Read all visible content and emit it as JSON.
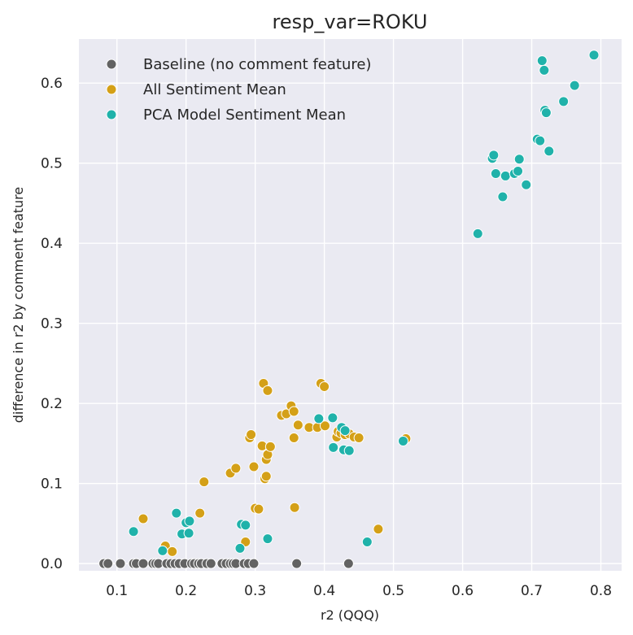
{
  "chart_data": {
    "type": "scatter",
    "title": "resp_var=ROKU",
    "xlabel": "r2 (QQQ)",
    "ylabel": "difference in r2 by comment feature",
    "xlim": [
      0.045,
      0.83
    ],
    "ylim": [
      -0.009,
      0.655
    ],
    "xticks": [
      0.1,
      0.2,
      0.3,
      0.4,
      0.5,
      0.6,
      0.7,
      0.8
    ],
    "yticks": [
      0.0,
      0.1,
      0.2,
      0.3,
      0.4,
      0.5,
      0.6
    ],
    "xtick_labels": [
      "0.1",
      "0.2",
      "0.3",
      "0.4",
      "0.5",
      "0.6",
      "0.7",
      "0.8"
    ],
    "ytick_labels": [
      "0.0",
      "0.1",
      "0.2",
      "0.3",
      "0.4",
      "0.5",
      "0.6"
    ],
    "grid": true,
    "legend_position": "top-left",
    "background": "#eaeaf2",
    "series": [
      {
        "name": "Baseline (no comment feature)",
        "color": "#636363",
        "points": [
          [
            0.081,
            0
          ],
          [
            0.087,
            0
          ],
          [
            0.105,
            0
          ],
          [
            0.124,
            0
          ],
          [
            0.128,
            0
          ],
          [
            0.138,
            0
          ],
          [
            0.152,
            0
          ],
          [
            0.156,
            0
          ],
          [
            0.16,
            0
          ],
          [
            0.172,
            0
          ],
          [
            0.178,
            0
          ],
          [
            0.184,
            0
          ],
          [
            0.19,
            0
          ],
          [
            0.198,
            0
          ],
          [
            0.208,
            0
          ],
          [
            0.212,
            0
          ],
          [
            0.218,
            0
          ],
          [
            0.222,
            0
          ],
          [
            0.23,
            0
          ],
          [
            0.236,
            0
          ],
          [
            0.252,
            0
          ],
          [
            0.258,
            0
          ],
          [
            0.264,
            0
          ],
          [
            0.268,
            0
          ],
          [
            0.272,
            0
          ],
          [
            0.284,
            0
          ],
          [
            0.29,
            0
          ],
          [
            0.298,
            0
          ],
          [
            0.36,
            0
          ],
          [
            0.435,
            0
          ]
        ]
      },
      {
        "name": "All Sentiment Mean",
        "color": "#d4a017",
        "points": [
          [
            0.138,
            0.056
          ],
          [
            0.17,
            0.022
          ],
          [
            0.18,
            0.015
          ],
          [
            0.22,
            0.063
          ],
          [
            0.226,
            0.102
          ],
          [
            0.264,
            0.113
          ],
          [
            0.272,
            0.119
          ],
          [
            0.286,
            0.027
          ],
          [
            0.292,
            0.157
          ],
          [
            0.294,
            0.161
          ],
          [
            0.298,
            0.121
          ],
          [
            0.3,
            0.069
          ],
          [
            0.305,
            0.068
          ],
          [
            0.31,
            0.147
          ],
          [
            0.312,
            0.225
          ],
          [
            0.314,
            0.106
          ],
          [
            0.316,
            0.109
          ],
          [
            0.316,
            0.13
          ],
          [
            0.318,
            0.136
          ],
          [
            0.318,
            0.216
          ],
          [
            0.322,
            0.146
          ],
          [
            0.338,
            0.185
          ],
          [
            0.345,
            0.187
          ],
          [
            0.352,
            0.197
          ],
          [
            0.356,
            0.19
          ],
          [
            0.356,
            0.157
          ],
          [
            0.357,
            0.07
          ],
          [
            0.362,
            0.173
          ],
          [
            0.378,
            0.17
          ],
          [
            0.39,
            0.17
          ],
          [
            0.395,
            0.225
          ],
          [
            0.4,
            0.221
          ],
          [
            0.401,
            0.172
          ],
          [
            0.418,
            0.158
          ],
          [
            0.42,
            0.165
          ],
          [
            0.424,
            0.163
          ],
          [
            0.43,
            0.161
          ],
          [
            0.436,
            0.162
          ],
          [
            0.443,
            0.158
          ],
          [
            0.45,
            0.157
          ],
          [
            0.478,
            0.043
          ],
          [
            0.518,
            0.156
          ]
        ]
      },
      {
        "name": "PCA Model Sentiment Mean",
        "color": "#20b2aa",
        "points": [
          [
            0.124,
            0.04
          ],
          [
            0.166,
            0.016
          ],
          [
            0.186,
            0.063
          ],
          [
            0.194,
            0.037
          ],
          [
            0.2,
            0.051
          ],
          [
            0.204,
            0.038
          ],
          [
            0.205,
            0.053
          ],
          [
            0.278,
            0.019
          ],
          [
            0.28,
            0.049
          ],
          [
            0.286,
            0.048
          ],
          [
            0.318,
            0.031
          ],
          [
            0.392,
            0.181
          ],
          [
            0.412,
            0.182
          ],
          [
            0.413,
            0.145
          ],
          [
            0.425,
            0.17
          ],
          [
            0.428,
            0.142
          ],
          [
            0.43,
            0.166
          ],
          [
            0.436,
            0.141
          ],
          [
            0.462,
            0.027
          ],
          [
            0.514,
            0.153
          ],
          [
            0.622,
            0.412
          ],
          [
            0.643,
            0.506
          ],
          [
            0.645,
            0.51
          ],
          [
            0.648,
            0.487
          ],
          [
            0.658,
            0.458
          ],
          [
            0.662,
            0.484
          ],
          [
            0.675,
            0.487
          ],
          [
            0.68,
            0.49
          ],
          [
            0.682,
            0.505
          ],
          [
            0.692,
            0.473
          ],
          [
            0.708,
            0.53
          ],
          [
            0.712,
            0.528
          ],
          [
            0.715,
            0.628
          ],
          [
            0.718,
            0.616
          ],
          [
            0.719,
            0.566
          ],
          [
            0.721,
            0.563
          ],
          [
            0.725,
            0.515
          ],
          [
            0.746,
            0.577
          ],
          [
            0.762,
            0.597
          ],
          [
            0.79,
            0.635
          ]
        ]
      }
    ]
  }
}
